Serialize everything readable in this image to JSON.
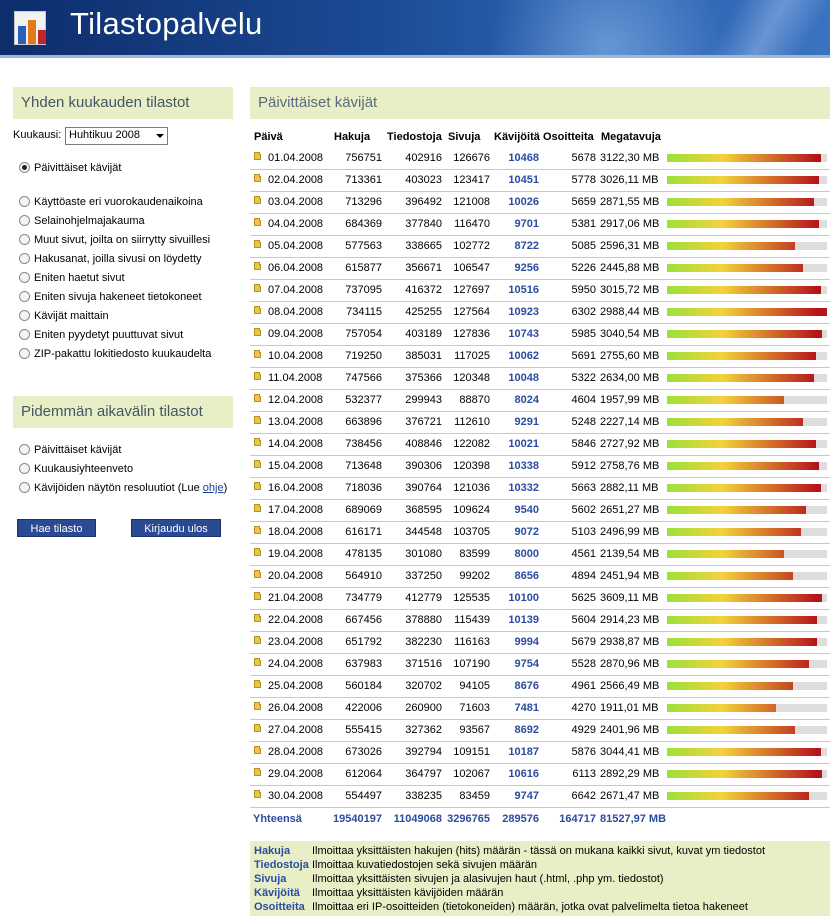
{
  "header": {
    "title": "Tilastopalvelu"
  },
  "sidebar": {
    "monthly_title": "Yhden kuukauden tilastot",
    "month_label": "Kuukausi:",
    "month_value": "Huhtikuu 2008",
    "monthly_options": [
      "Päivittäiset kävijät",
      "Käyttöaste eri vuorokaudenaikoina",
      "Selainohjelmajakauma",
      "Muut sivut, joilta on siirrytty sivuillesi",
      "Hakusanat, joilla sivusi on löydetty",
      "Eniten haetut sivut",
      "Eniten sivuja hakeneet tietokoneet",
      "Kävijät maittain",
      "Eniten pyydetyt puuttuvat sivut",
      "ZIP-pakattu lokitiedosto kuukaudelta"
    ],
    "longer_title": "Pidemmän aikavälin tilastot",
    "longer_options": [
      "Päivittäiset kävijät",
      "Kuukausiyhteenveto",
      "Kävijöiden näytön resoluutiot (Lue"
    ],
    "help_link": "ohje",
    "help_close": ")",
    "fetch_button": "Hae tilasto",
    "logout_button": "Kirjaudu ulos"
  },
  "main": {
    "title": "Päivittäiset kävijät",
    "columns": [
      "Päivä",
      "Hakuja",
      "Tiedostoja",
      "Sivuja",
      "Kävijöitä",
      "Osoitteita",
      "Megatavuja"
    ],
    "rows": [
      [
        "01.04.2008",
        "756751",
        "402916",
        "126676",
        "10468",
        "5678",
        "3122,30 MB"
      ],
      [
        "02.04.2008",
        "713361",
        "403023",
        "123417",
        "10451",
        "5778",
        "3026,11 MB"
      ],
      [
        "03.04.2008",
        "713296",
        "396492",
        "121008",
        "10026",
        "5659",
        "2871,55 MB"
      ],
      [
        "04.04.2008",
        "684369",
        "377840",
        "116470",
        "9701",
        "5381",
        "2917,06 MB"
      ],
      [
        "05.04.2008",
        "577563",
        "338665",
        "102772",
        "8722",
        "5085",
        "2596,31 MB"
      ],
      [
        "06.04.2008",
        "615877",
        "356671",
        "106547",
        "9256",
        "5226",
        "2445,88 MB"
      ],
      [
        "07.04.2008",
        "737095",
        "416372",
        "127697",
        "10516",
        "5950",
        "3015,72 MB"
      ],
      [
        "08.04.2008",
        "734115",
        "425255",
        "127564",
        "10923",
        "6302",
        "2988,44 MB"
      ],
      [
        "09.04.2008",
        "757054",
        "403189",
        "127836",
        "10743",
        "5985",
        "3040,54 MB"
      ],
      [
        "10.04.2008",
        "719250",
        "385031",
        "117025",
        "10062",
        "5691",
        "2755,60 MB"
      ],
      [
        "11.04.2008",
        "747566",
        "375366",
        "120348",
        "10048",
        "5322",
        "2634,00 MB"
      ],
      [
        "12.04.2008",
        "532377",
        "299943",
        "88870",
        "8024",
        "4604",
        "1957,99 MB"
      ],
      [
        "13.04.2008",
        "663896",
        "376721",
        "112610",
        "9291",
        "5248",
        "2227,14 MB"
      ],
      [
        "14.04.2008",
        "738456",
        "408846",
        "122082",
        "10021",
        "5846",
        "2727,92 MB"
      ],
      [
        "15.04.2008",
        "713648",
        "390306",
        "120398",
        "10338",
        "5912",
        "2758,76 MB"
      ],
      [
        "16.04.2008",
        "718036",
        "390764",
        "121036",
        "10332",
        "5663",
        "2882,11 MB"
      ],
      [
        "17.04.2008",
        "689069",
        "368595",
        "109624",
        "9540",
        "5602",
        "2651,27 MB"
      ],
      [
        "18.04.2008",
        "616171",
        "344548",
        "103705",
        "9072",
        "5103",
        "2496,99 MB"
      ],
      [
        "19.04.2008",
        "478135",
        "301080",
        "83599",
        "8000",
        "4561",
        "2139,54 MB"
      ],
      [
        "20.04.2008",
        "564910",
        "337250",
        "99202",
        "8656",
        "4894",
        "2451,94 MB"
      ],
      [
        "21.04.2008",
        "734779",
        "412779",
        "125535",
        "10100",
        "5625",
        "3609,11 MB"
      ],
      [
        "22.04.2008",
        "667456",
        "378880",
        "115439",
        "10139",
        "5604",
        "2914,23 MB"
      ],
      [
        "23.04.2008",
        "651792",
        "382230",
        "116163",
        "9994",
        "5679",
        "2938,87 MB"
      ],
      [
        "24.04.2008",
        "637983",
        "371516",
        "107190",
        "9754",
        "5528",
        "2870,96 MB"
      ],
      [
        "25.04.2008",
        "560184",
        "320702",
        "94105",
        "8676",
        "4961",
        "2566,49 MB"
      ],
      [
        "26.04.2008",
        "422006",
        "260900",
        "71603",
        "7481",
        "4270",
        "1911,01 MB"
      ],
      [
        "27.04.2008",
        "555415",
        "327362",
        "93567",
        "8692",
        "4929",
        "2401,96 MB"
      ],
      [
        "28.04.2008",
        "673026",
        "392794",
        "109151",
        "10187",
        "5876",
        "3044,41 MB"
      ],
      [
        "29.04.2008",
        "612064",
        "364797",
        "102067",
        "10616",
        "6113",
        "2892,29 MB"
      ],
      [
        "30.04.2008",
        "554497",
        "338235",
        "83459",
        "9747",
        "6642",
        "2671,47 MB"
      ]
    ],
    "bar_fractions": [
      0.96,
      0.95,
      0.92,
      0.95,
      0.8,
      0.85,
      0.96,
      1.0,
      0.97,
      0.93,
      0.92,
      0.73,
      0.85,
      0.93,
      0.95,
      0.96,
      0.87,
      0.84,
      0.73,
      0.79,
      0.97,
      0.94,
      0.94,
      0.89,
      0.79,
      0.68,
      0.8,
      0.96,
      0.97,
      0.89
    ],
    "totals": {
      "label": "Yhteensä",
      "hakuja": "19540197",
      "tiedostoja": "11049068",
      "sivuja": "3296765",
      "kavijoita": "289576",
      "osoitteita": "164717",
      "megatavuja": "81527,97 MB"
    },
    "legend": [
      {
        "key": "Hakuja",
        "desc": "Ilmoittaa yksittäisten hakujen (hits) määrän - tässä on mukana kaikki sivut, kuvat ym tiedostot"
      },
      {
        "key": "Tiedostoja",
        "desc": "Ilmoittaa kuvatiedostojen sekä sivujen määrän"
      },
      {
        "key": "Sivuja",
        "desc": "Ilmoittaa yksittäisten sivujen ja alasivujen haut (.html, .php ym. tiedostot)"
      },
      {
        "key": "Kävijöitä",
        "desc": "Ilmoittaa yksittäisten kävijöiden määrän"
      },
      {
        "key": "Osoitteita",
        "desc": "Ilmoittaa eri IP-osoitteiden (tietokoneiden) määrän, jotka ovat palvelimelta tietoa hakeneet"
      }
    ],
    "colors": {
      "accent_link": "#2b4ca0",
      "panel_bg": "#e8efc6",
      "button_bg": "#2a4a94",
      "bar_start": "#9be13a",
      "bar_mid": "#f3d23a",
      "bar_end": "#b5141b"
    }
  },
  "icons": {
    "logo": "chart-sheet-logo-icon",
    "row": "folder-icon",
    "select": "chevron-down-icon"
  }
}
